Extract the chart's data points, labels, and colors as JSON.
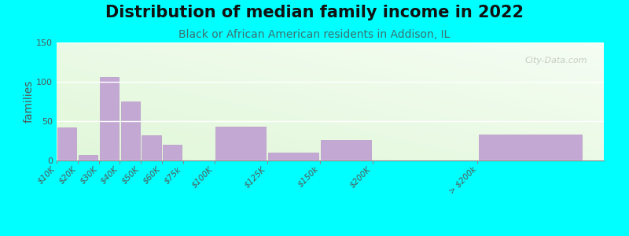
{
  "title": "Distribution of median family income in 2022",
  "subtitle": "Black or African American residents in Addison, IL",
  "ylabel": "families",
  "background_color": "#00FFFF",
  "bar_color": "#c4a8d4",
  "bar_edge_color": "#b898c8",
  "categories": [
    "$10K",
    "$20K",
    "$30K",
    "$40K",
    "$50K",
    "$60K",
    "$75k",
    "$100K",
    "$125K",
    "$150k",
    "$200K",
    "> $200k"
  ],
  "values": [
    42,
    7,
    106,
    75,
    32,
    20,
    0,
    43,
    10,
    26,
    0,
    33
  ],
  "bin_edges": [
    0,
    10,
    20,
    30,
    40,
    50,
    60,
    75,
    100,
    125,
    150,
    200,
    250
  ],
  "xlim": [
    0,
    260
  ],
  "ylim": [
    0,
    150
  ],
  "yticks": [
    0,
    50,
    100,
    150
  ],
  "title_fontsize": 15,
  "subtitle_fontsize": 10,
  "ylabel_fontsize": 10,
  "watermark": "City-Data.com",
  "subtitle_color": "#407070",
  "title_color": "#111111"
}
